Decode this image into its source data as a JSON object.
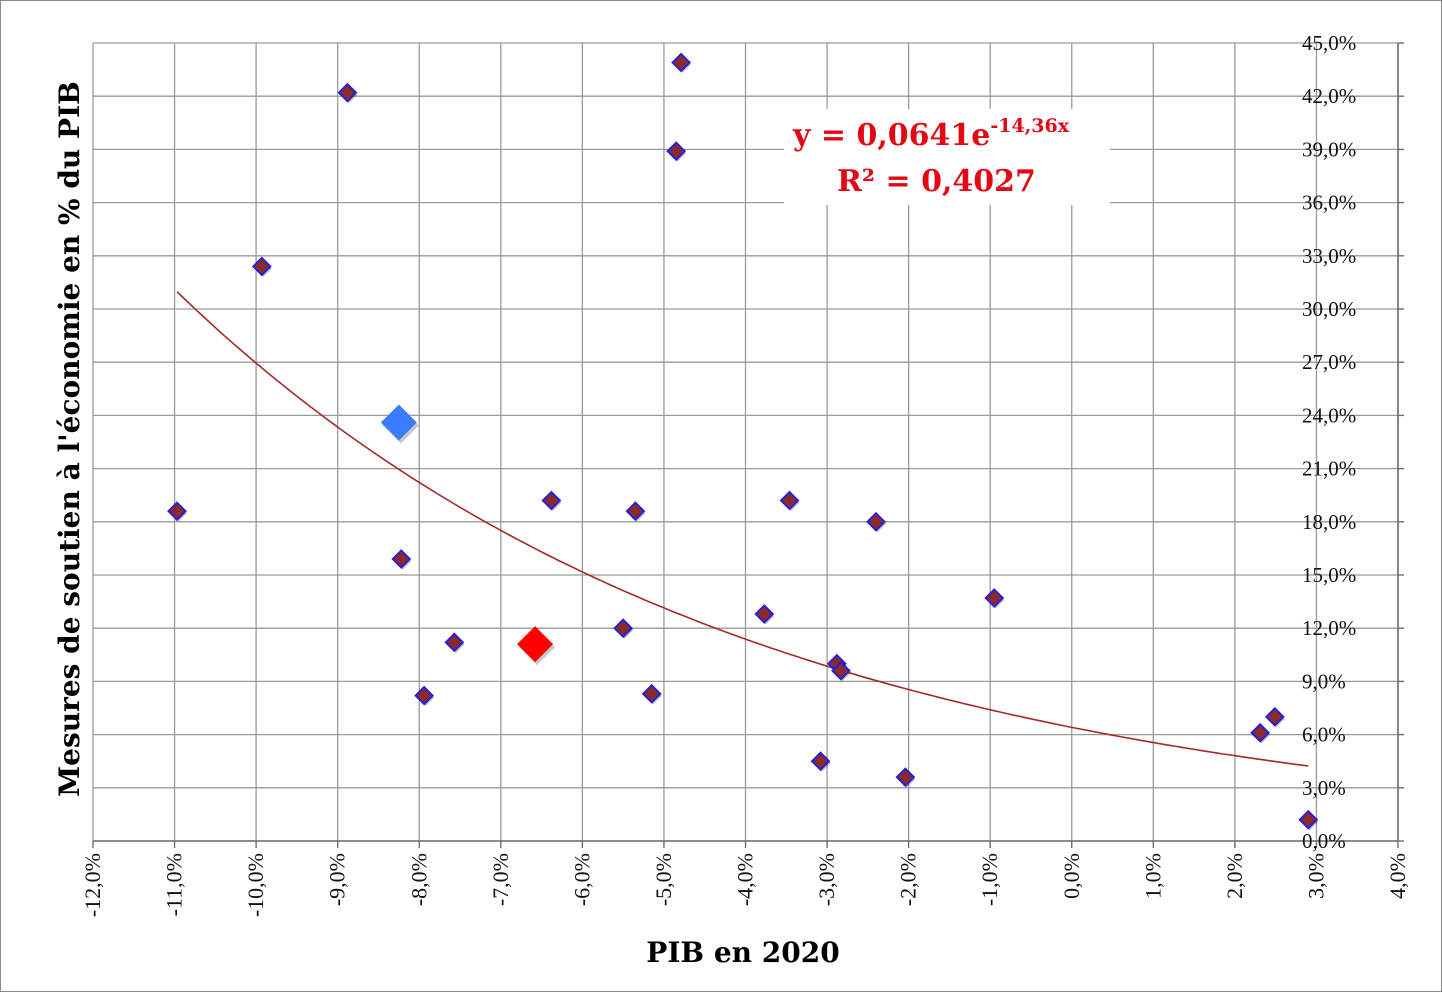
{
  "chart_data": {
    "type": "scatter",
    "title": "",
    "xlabel": "PIB en 2020",
    "ylabel": "Mesures de soutien à l'économie en % du PIB",
    "xlim": [
      -0.12,
      0.04
    ],
    "ylim": [
      0.0,
      0.45
    ],
    "x_ticks": [
      -0.12,
      -0.11,
      -0.1,
      -0.09,
      -0.08,
      -0.07,
      -0.06,
      -0.05,
      -0.04,
      -0.03,
      -0.02,
      -0.01,
      0.0,
      0.01,
      0.02,
      0.03,
      0.04
    ],
    "x_tick_labels": [
      "-12,0%",
      "-11,0%",
      "-10,0%",
      "-9,0%",
      "-8,0%",
      "-7,0%",
      "-6,0%",
      "-5,0%",
      "-4,0%",
      "-3,0%",
      "-2,0%",
      "-1,0%",
      "0,0%",
      "1,0%",
      "2,0%",
      "3,0%",
      "4,0%"
    ],
    "y_ticks": [
      0.0,
      0.03,
      0.06,
      0.09,
      0.12,
      0.15,
      0.18,
      0.21,
      0.24,
      0.27,
      0.3,
      0.33,
      0.36,
      0.39,
      0.42,
      0.45
    ],
    "y_tick_labels": [
      "0,0%",
      "3,0%",
      "6,0%",
      "9,0%",
      "12,0%",
      "15,0%",
      "18,0%",
      "21,0%",
      "24,0%",
      "27,0%",
      "30,0%",
      "33,0%",
      "36,0%",
      "39,0%",
      "42,0%",
      "45,0%"
    ],
    "grid": true,
    "y_axis_side": "right",
    "x_tick_rotation": -90,
    "series": [
      {
        "marker": "diamond",
        "color": "#8b2a2a",
        "edge_color": "#2a1fd6",
        "points": [
          {
            "x": -0.1097,
            "y": 0.186
          },
          {
            "x": -0.0993,
            "y": 0.324
          },
          {
            "x": -0.0888,
            "y": 0.422
          },
          {
            "x": -0.0822,
            "y": 0.159
          },
          {
            "x": -0.0794,
            "y": 0.082
          },
          {
            "x": -0.0757,
            "y": 0.112
          },
          {
            "x": -0.0638,
            "y": 0.192
          },
          {
            "x": -0.055,
            "y": 0.12
          },
          {
            "x": -0.0535,
            "y": 0.186
          },
          {
            "x": -0.0515,
            "y": 0.083
          },
          {
            "x": -0.0485,
            "y": 0.389
          },
          {
            "x": -0.0479,
            "y": 0.439
          },
          {
            "x": -0.0377,
            "y": 0.128
          },
          {
            "x": -0.0346,
            "y": 0.192
          },
          {
            "x": -0.0308,
            "y": 0.045
          },
          {
            "x": -0.0288,
            "y": 0.1
          },
          {
            "x": -0.0283,
            "y": 0.096
          },
          {
            "x": -0.024,
            "y": 0.18
          },
          {
            "x": -0.0204,
            "y": 0.036
          },
          {
            "x": -0.0095,
            "y": 0.137
          },
          {
            "x": 0.0231,
            "y": 0.061
          },
          {
            "x": 0.0249,
            "y": 0.07
          },
          {
            "x": 0.029,
            "y": 0.012
          }
        ]
      },
      {
        "marker": "diamond-large",
        "color": "#3b7bff",
        "points": [
          {
            "x": -0.0825,
            "y": 0.236
          }
        ]
      },
      {
        "marker": "diamond-large",
        "color": "#ff0000",
        "points": [
          {
            "x": -0.0658,
            "y": 0.111
          }
        ]
      }
    ],
    "trendline": {
      "type": "exponential",
      "a": 0.0641,
      "b": -14.36,
      "x_range": [
        -0.1097,
        0.029
      ],
      "color": "#a52a2a",
      "equation_main": "y = 0,0641e",
      "equation_exponent": "-14,36x",
      "r_squared_label": "R² = 0,4027"
    }
  }
}
